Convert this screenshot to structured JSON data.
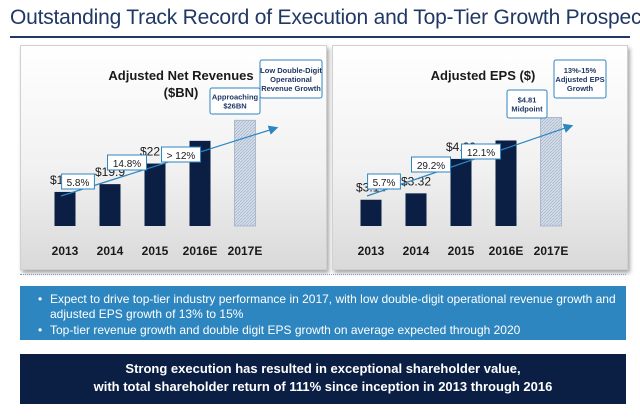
{
  "title": "Outstanding Track Record of Execution and Top-Tier Growth Prospects",
  "chart_data": [
    {
      "type": "bar",
      "title_lines": [
        "Adjusted Net Revenues",
        "($BN)"
      ],
      "categories": [
        "2013",
        "2014",
        "2015",
        "2016E",
        "2017E"
      ],
      "values": [
        18.8,
        19.9,
        22.8,
        26,
        28.9
      ],
      "value_labels": [
        "$18.8",
        "$19.9",
        "$22.8",
        "",
        ""
      ],
      "projected": [
        false,
        false,
        false,
        false,
        true
      ],
      "bar_colors": [
        "#0b1f45",
        "#0b1f45",
        "#0b1f45",
        "#0b1f45",
        "#c7d3e3"
      ],
      "growth_labels": [
        "5.8%",
        "14.8%",
        "> 12%"
      ],
      "callouts": [
        {
          "lines": [
            "Approaching",
            "$26BN"
          ],
          "category": "2016E"
        },
        {
          "lines": [
            "Low Double-Digit",
            "Operational",
            "Revenue Growth"
          ],
          "category": "2017E"
        }
      ]
    },
    {
      "type": "bar",
      "title_lines": [
        "Adjusted EPS ($)"
      ],
      "categories": [
        "2013",
        "2014",
        "2015",
        "2016E",
        "2017E"
      ],
      "values": [
        3.14,
        3.32,
        4.29,
        4.81,
        5.46
      ],
      "value_labels": [
        "$3.14",
        "$3.32",
        "$4.29",
        "",
        ""
      ],
      "projected": [
        false,
        false,
        false,
        false,
        true
      ],
      "bar_colors": [
        "#0b1f45",
        "#0b1f45",
        "#0b1f45",
        "#0b1f45",
        "#c7d3e3"
      ],
      "growth_labels": [
        "5.7%",
        "29.2%",
        "12.1%"
      ],
      "callouts": [
        {
          "lines": [
            "$4.81",
            "Midpoint"
          ],
          "category": "2016E"
        },
        {
          "lines": [
            "13%-15%",
            "Adjusted EPS",
            "Growth"
          ],
          "category": "2017E"
        }
      ]
    }
  ],
  "bullets": [
    "Expect to drive top-tier industry performance in 2017, with low double-digit operational revenue growth and adjusted EPS growth of 13% to 15%",
    "Top-tier revenue growth and double digit EPS growth on average expected through 2020"
  ],
  "banner": {
    "line1": "Strong execution has resulted in exceptional shareholder value,",
    "line2": "with total shareholder return of 111% since inception in 2013 through 2016"
  }
}
